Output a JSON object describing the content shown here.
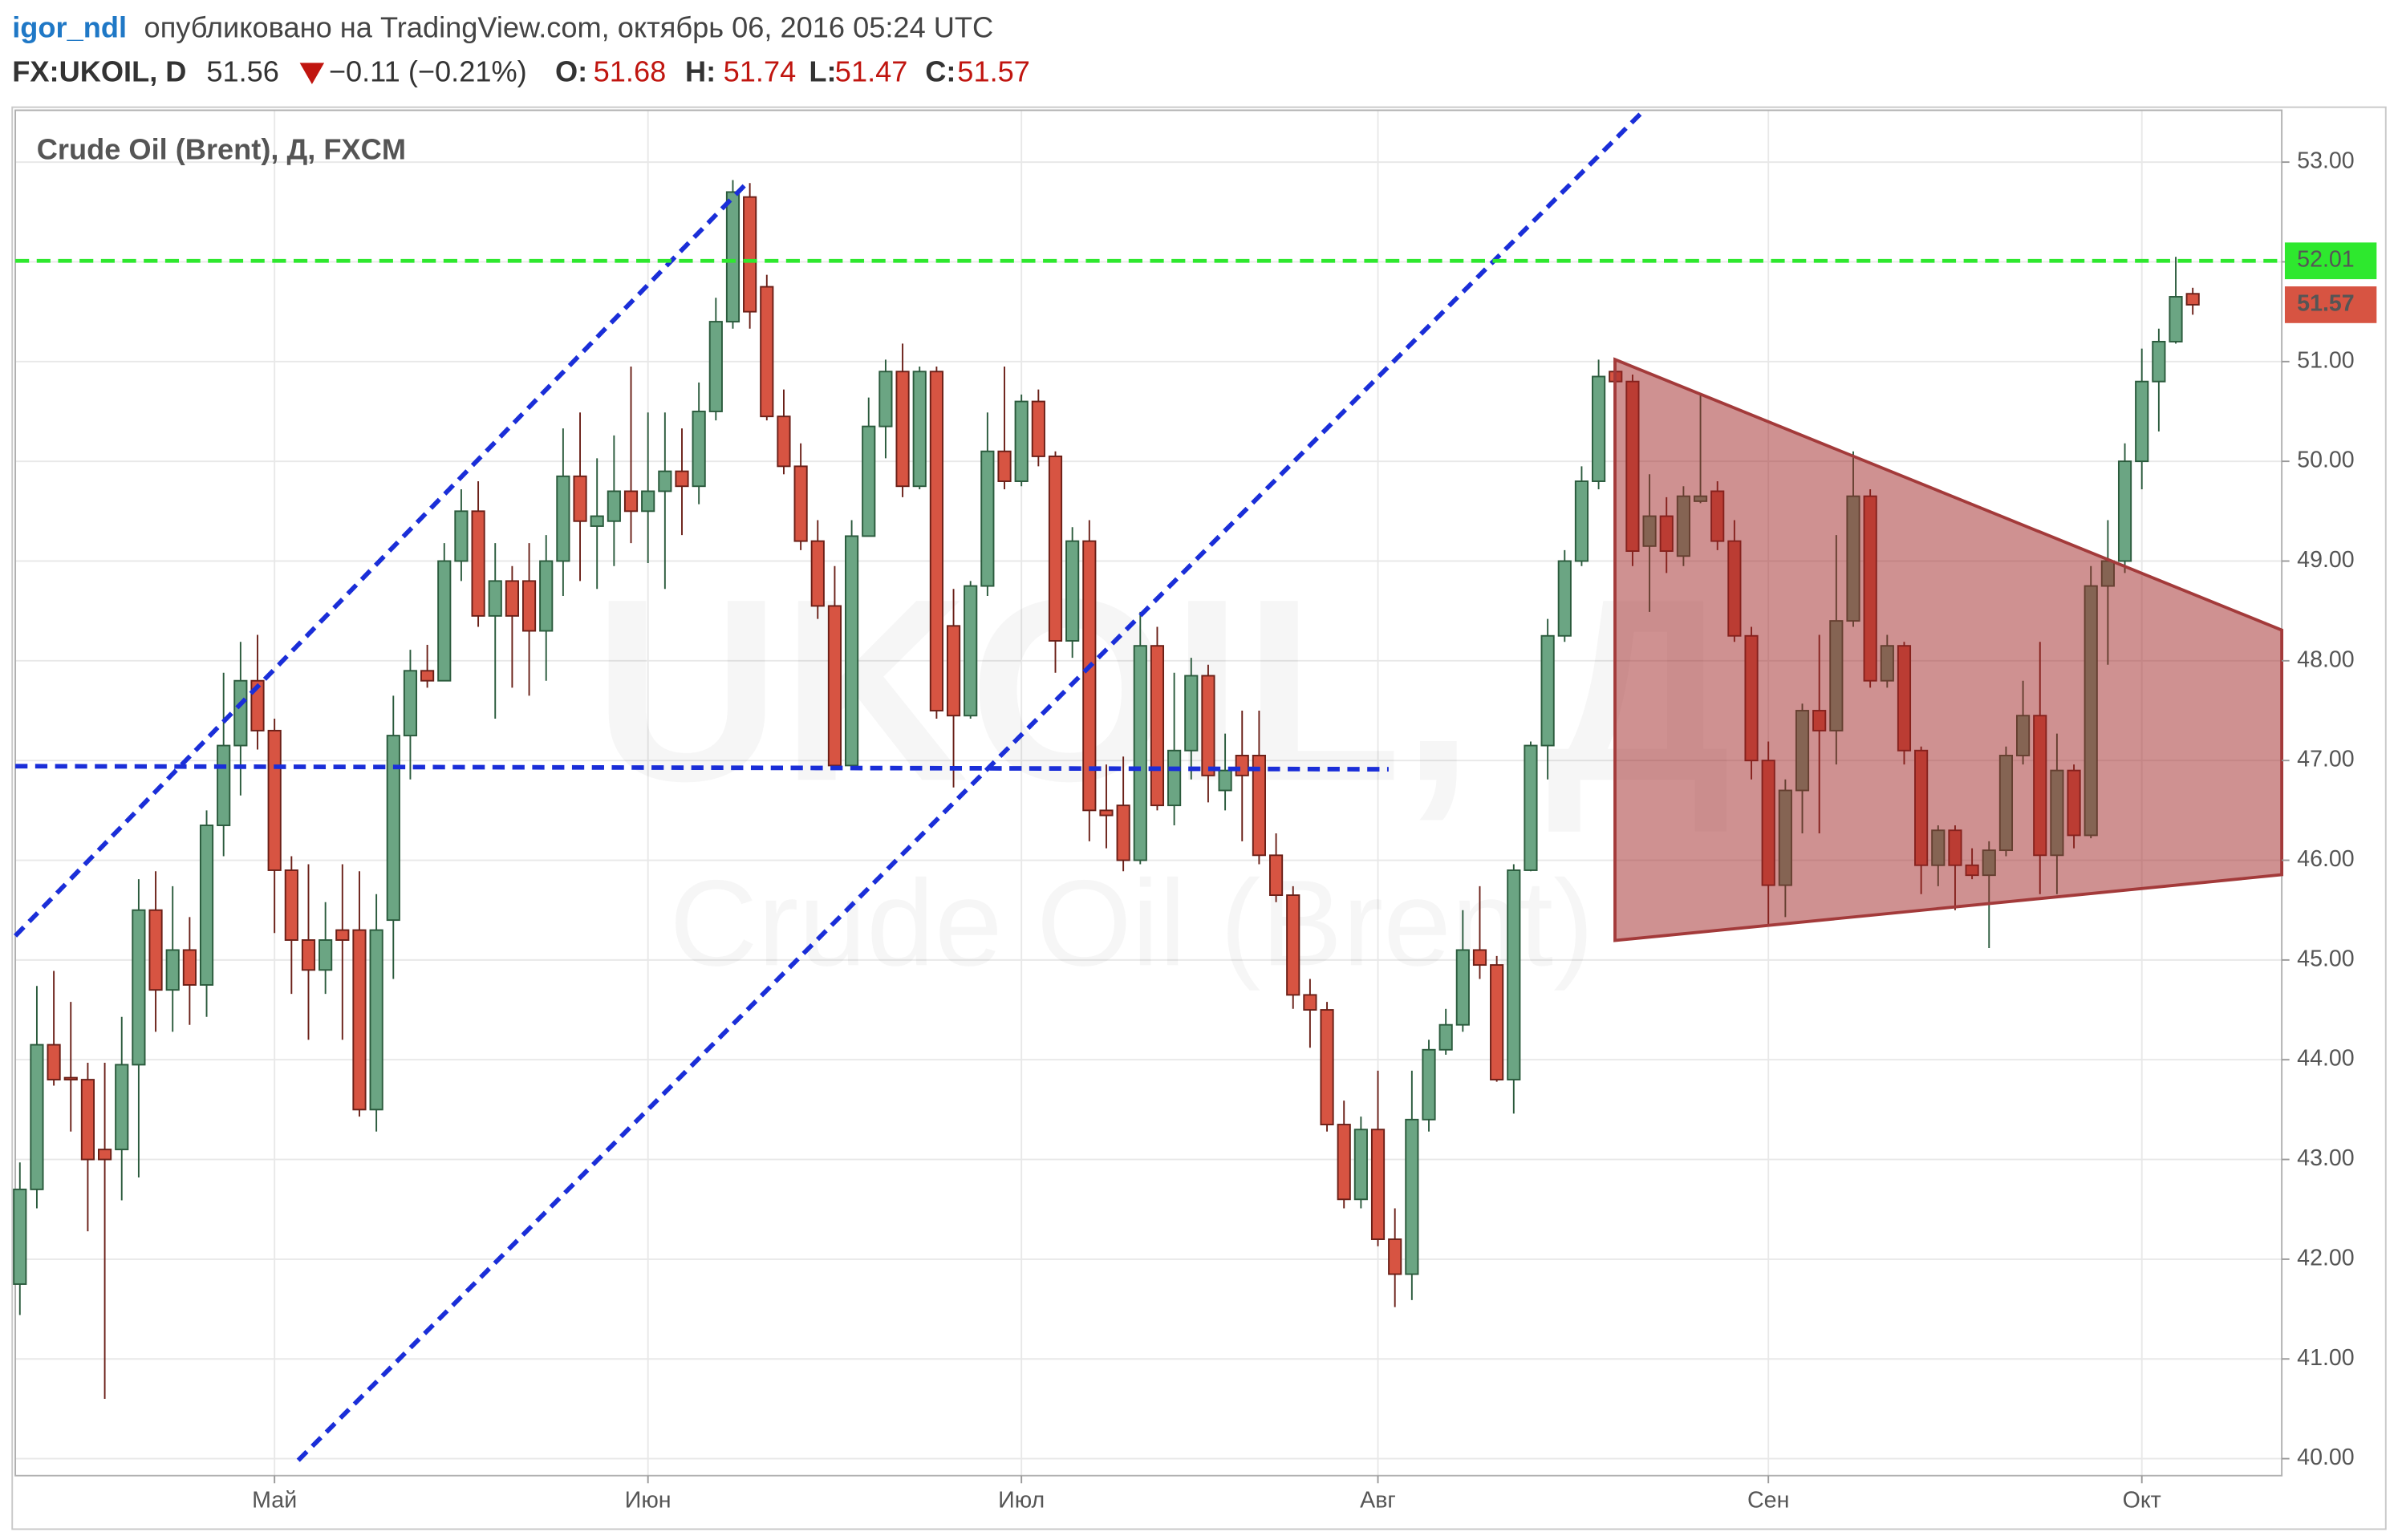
{
  "header": {
    "author": "igor_ndl",
    "published": "опубликовано на TradingView.com, октябрь 06, 2016 05:24 UTC",
    "symbol": "FX:UKOIL, D",
    "price": 51.56,
    "change": "−0.11 (−0.21%)",
    "o_label": "O:",
    "o": 51.68,
    "h_label": "H:",
    "h": 51.74,
    "l_label": "L:",
    "l": 51.47,
    "c_label": "C:",
    "c": 51.57
  },
  "chart_data": {
    "type": "candlestick",
    "title": "Crude Oil (Brent), Д, FXCM",
    "watermark": [
      "UKOIL, Д",
      "Crude Oil (Brent)"
    ],
    "up_color": "#6ba583",
    "down_color": "#d75442",
    "categories": [
      null,
      null,
      null,
      null,
      null,
      null,
      null,
      null,
      null,
      null,
      null,
      null,
      null,
      null,
      null,
      "Май",
      null,
      null,
      null,
      null,
      null,
      null,
      null,
      null,
      null,
      null,
      null,
      null,
      null,
      null,
      null,
      null,
      null,
      null,
      null,
      null,
      null,
      "Июн",
      null,
      null,
      null,
      null,
      null,
      null,
      null,
      null,
      null,
      null,
      null,
      null,
      null,
      null,
      null,
      null,
      null,
      null,
      null,
      null,
      null,
      "Июл",
      null,
      null,
      null,
      null,
      null,
      null,
      null,
      null,
      null,
      null,
      null,
      null,
      null,
      null,
      null,
      null,
      null,
      null,
      null,
      null,
      "Авг",
      null,
      null,
      null,
      null,
      null,
      null,
      null,
      null,
      null,
      null,
      null,
      null,
      null,
      null,
      null,
      null,
      null,
      null,
      null,
      null,
      null,
      null,
      "Сен",
      null,
      null,
      null,
      null,
      null,
      null,
      null,
      null,
      null,
      null,
      null,
      null,
      null,
      null,
      null,
      null,
      null,
      null,
      null,
      null,
      null,
      "Окт",
      null,
      null,
      null
    ],
    "open": [
      41.75,
      42.7,
      44.15,
      43.82,
      43.8,
      43.1,
      43.1,
      43.95,
      45.5,
      44.7,
      45.1,
      44.75,
      46.35,
      47.15,
      47.8,
      47.3,
      45.9,
      45.2,
      44.9,
      45.3,
      45.3,
      43.5,
      45.4,
      47.25,
      47.9,
      47.8,
      49.0,
      49.5,
      48.45,
      48.8,
      48.8,
      48.3,
      49.0,
      49.85,
      49.35,
      49.4,
      49.7,
      49.5,
      49.7,
      49.9,
      49.75,
      50.5,
      51.4,
      52.65,
      51.75,
      50.45,
      49.95,
      49.2,
      48.55,
      46.95,
      49.25,
      50.35,
      50.9,
      49.75,
      50.9,
      48.35,
      47.45,
      48.75,
      50.1,
      49.8,
      50.6,
      50.05,
      48.2,
      49.2,
      46.5,
      46.55,
      46.0,
      48.15,
      46.55,
      47.1,
      47.85,
      46.7,
      47.05,
      47.05,
      46.05,
      45.65,
      44.65,
      44.5,
      43.35,
      42.6,
      43.3,
      42.2,
      41.85,
      43.4,
      44.1,
      44.35,
      45.1,
      44.95,
      43.8,
      45.9,
      47.15,
      48.25,
      49.0,
      49.8,
      50.9,
      50.8,
      49.15,
      49.45,
      49.05,
      49.6,
      49.7,
      49.2,
      48.25,
      47.0,
      45.75,
      46.7,
      47.5,
      47.3,
      48.4,
      49.65,
      47.8,
      48.15,
      47.1,
      45.95,
      46.3,
      45.95,
      45.85,
      46.1,
      47.05,
      47.45,
      46.05,
      46.9,
      46.25,
      48.75,
      49.0,
      50.0,
      50.8,
      51.2,
      51.68
    ],
    "high": [
      42.97,
      44.74,
      44.89,
      44.58,
      43.97,
      43.97,
      44.43,
      45.81,
      45.89,
      45.74,
      45.43,
      46.5,
      47.88,
      48.19,
      48.26,
      47.42,
      46.04,
      45.96,
      45.58,
      45.96,
      45.89,
      45.66,
      47.65,
      48.11,
      48.16,
      49.18,
      49.72,
      49.8,
      49.18,
      48.95,
      49.18,
      49.26,
      50.33,
      50.49,
      50.03,
      50.26,
      50.95,
      50.49,
      50.49,
      50.33,
      50.79,
      51.64,
      52.82,
      52.79,
      51.87,
      50.72,
      50.18,
      49.41,
      48.95,
      49.41,
      50.64,
      51.02,
      51.18,
      50.95,
      50.95,
      48.72,
      48.8,
      50.49,
      50.95,
      50.67,
      50.72,
      50.1,
      49.34,
      49.41,
      46.96,
      47.04,
      48.49,
      48.34,
      47.88,
      48.03,
      47.96,
      47.27,
      47.5,
      47.5,
      46.27,
      45.74,
      44.81,
      44.58,
      43.59,
      43.43,
      43.89,
      42.51,
      43.89,
      44.2,
      44.51,
      45.5,
      45.74,
      45.04,
      45.96,
      47.19,
      48.42,
      49.11,
      49.95,
      51.02,
      51.02,
      50.87,
      49.87,
      49.64,
      49.75,
      50.67,
      49.8,
      49.41,
      48.34,
      47.19,
      46.81,
      47.57,
      48.26,
      49.26,
      50.1,
      49.72,
      48.26,
      48.19,
      47.14,
      46.35,
      46.35,
      46.12,
      46.19,
      47.14,
      47.8,
      48.19,
      47.27,
      46.96,
      48.95,
      49.41,
      50.18,
      51.13,
      51.33,
      52.05,
      51.74
    ],
    "low": [
      41.44,
      42.51,
      43.74,
      43.28,
      42.28,
      40.6,
      42.59,
      42.82,
      44.28,
      44.28,
      44.35,
      44.43,
      46.04,
      46.65,
      47.11,
      45.27,
      44.66,
      44.2,
      44.66,
      44.2,
      43.43,
      43.28,
      44.81,
      46.81,
      47.73,
      47.8,
      48.8,
      48.34,
      47.42,
      47.73,
      47.65,
      47.8,
      48.65,
      48.8,
      48.72,
      48.95,
      49.18,
      48.98,
      48.72,
      49.26,
      49.57,
      50.41,
      51.33,
      51.33,
      50.41,
      49.87,
      49.11,
      48.42,
      46.93,
      46.93,
      49.26,
      50.03,
      49.64,
      49.72,
      47.42,
      46.73,
      47.42,
      48.65,
      49.72,
      49.75,
      49.95,
      47.88,
      48.03,
      46.19,
      46.12,
      45.89,
      45.96,
      46.5,
      46.35,
      46.81,
      46.58,
      46.5,
      46.19,
      45.96,
      45.58,
      44.51,
      44.12,
      43.28,
      42.51,
      42.51,
      42.13,
      41.52,
      41.59,
      43.28,
      44.05,
      44.28,
      44.81,
      43.78,
      43.46,
      45.89,
      46.81,
      48.19,
      48.95,
      49.72,
      50.72,
      48.95,
      48.49,
      48.88,
      48.95,
      49.58,
      49.11,
      48.19,
      46.81,
      45.35,
      45.43,
      46.27,
      46.27,
      46.96,
      48.34,
      47.73,
      47.73,
      46.96,
      45.66,
      45.74,
      45.5,
      45.81,
      45.12,
      46.04,
      46.96,
      45.66,
      45.66,
      46.12,
      46.22,
      47.96,
      48.88,
      49.72,
      50.3,
      51.18,
      51.47
    ],
    "close": [
      42.7,
      44.15,
      43.8,
      43.8,
      43.0,
      43.0,
      43.95,
      45.5,
      44.7,
      45.1,
      44.75,
      46.35,
      47.15,
      47.8,
      47.3,
      45.9,
      45.2,
      44.9,
      45.2,
      45.2,
      43.5,
      45.3,
      47.25,
      47.9,
      47.8,
      49.0,
      49.5,
      48.45,
      48.8,
      48.45,
      48.3,
      49.0,
      49.85,
      49.4,
      49.45,
      49.7,
      49.5,
      49.7,
      49.9,
      49.75,
      50.5,
      51.4,
      52.7,
      51.5,
      50.45,
      49.95,
      49.2,
      48.55,
      46.95,
      49.25,
      50.35,
      50.9,
      49.75,
      50.9,
      47.5,
      47.45,
      48.75,
      50.1,
      49.8,
      50.6,
      50.05,
      48.2,
      49.2,
      46.5,
      46.45,
      46.0,
      48.15,
      46.55,
      47.1,
      47.85,
      46.85,
      46.9,
      46.85,
      46.05,
      45.65,
      44.65,
      44.5,
      43.35,
      42.6,
      43.3,
      42.2,
      41.85,
      43.4,
      44.1,
      44.35,
      45.1,
      44.95,
      43.8,
      45.9,
      47.15,
      48.25,
      49.0,
      49.8,
      50.85,
      50.8,
      49.1,
      49.45,
      49.1,
      49.65,
      49.65,
      49.2,
      48.25,
      47.0,
      45.75,
      46.7,
      47.5,
      47.3,
      48.4,
      49.65,
      47.8,
      48.15,
      47.1,
      45.95,
      46.3,
      45.95,
      45.85,
      46.1,
      47.05,
      47.45,
      46.05,
      46.9,
      46.25,
      48.75,
      49.0,
      50.0,
      50.8,
      51.2,
      51.65,
      51.57
    ],
    "ylim": [
      39.83,
      53.52
    ],
    "yticks": [
      {
        "value": 40,
        "label": "40.00"
      },
      {
        "value": 41,
        "label": "41.00"
      },
      {
        "value": 42,
        "label": "42.00"
      },
      {
        "value": 43,
        "label": "43.00"
      },
      {
        "value": 44,
        "label": "44.00"
      },
      {
        "value": 45,
        "label": "45.00"
      },
      {
        "value": 46,
        "label": "46.00"
      },
      {
        "value": 47,
        "label": "47.00"
      },
      {
        "value": 48,
        "label": "48.00"
      },
      {
        "value": 49,
        "label": "49.00"
      },
      {
        "value": 50,
        "label": "50.00"
      },
      {
        "value": 51,
        "label": "51.00"
      },
      {
        "value": 52,
        "label": "52.00"
      },
      {
        "value": 53,
        "label": "53.00"
      }
    ],
    "grid": true,
    "hline": {
      "value": 52.01,
      "color": "#2ee82e"
    },
    "last_price": {
      "value": 51.57,
      "color": "#d75442"
    }
  }
}
